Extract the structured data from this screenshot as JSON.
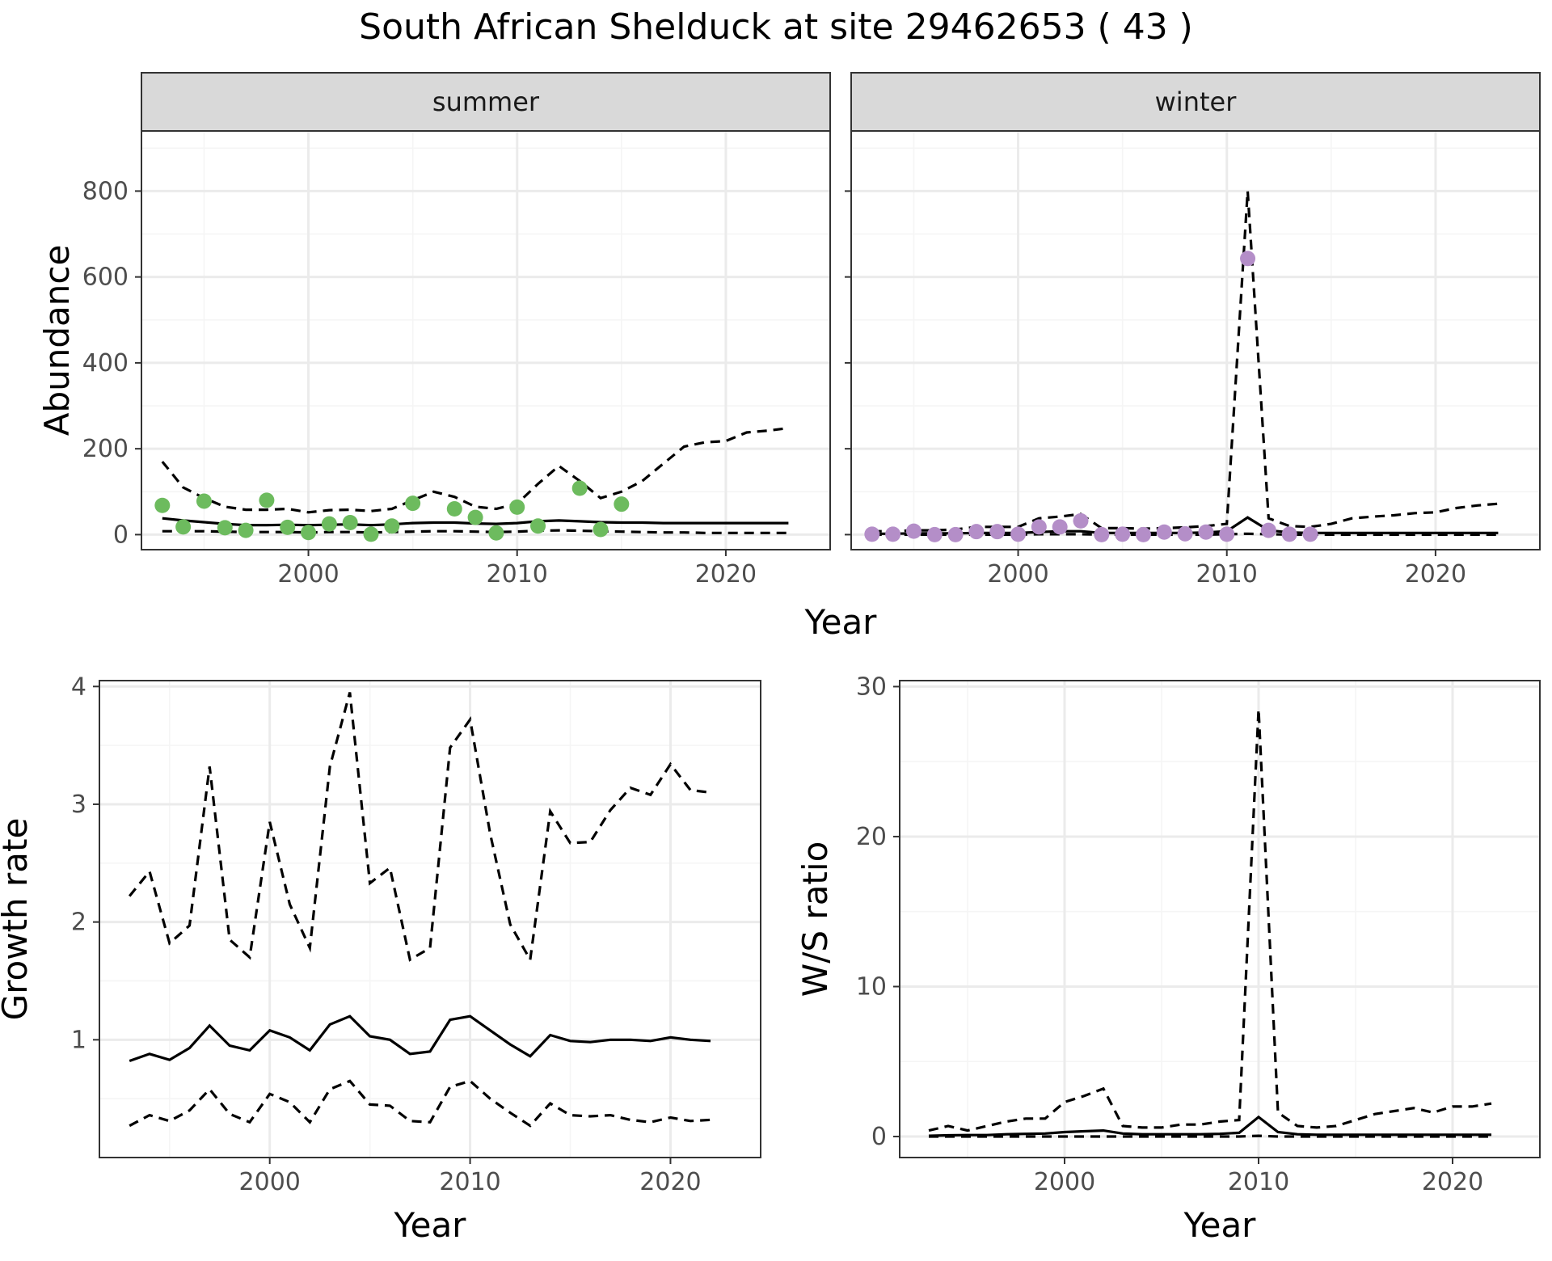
{
  "title": "South African Shelduck at site 29462653 ( 43 )",
  "chart_data": [
    {
      "type": "line",
      "panel": "summer",
      "strip_label": "summer",
      "xlabel": "Year",
      "ylabel": "Abundance",
      "xlim": [
        1992,
        2025
      ],
      "ylim": [
        -35,
        940
      ],
      "xticks": [
        2000,
        2010,
        2020
      ],
      "yticks": [
        0,
        200,
        400,
        600,
        800
      ],
      "grid": true,
      "point_color": "#6dbb5e",
      "points": {
        "x": [
          1993,
          1994,
          1995,
          1996,
          1997,
          1998,
          1999,
          2000,
          2001,
          2002,
          2003,
          2004,
          2005,
          2007,
          2008,
          2009,
          2010,
          2011,
          2013,
          2014,
          2015
        ],
        "y": [
          68,
          18,
          78,
          16,
          10,
          80,
          17,
          5,
          25,
          28,
          1,
          20,
          73,
          60,
          40,
          4,
          64,
          20,
          108,
          12,
          71
        ]
      },
      "series": [
        {
          "name": "",
          "style": "solid",
          "x": [
            1993,
            1994,
            1995,
            1996,
            1997,
            1998,
            1999,
            2000,
            2001,
            2002,
            2003,
            2004,
            2005,
            2006,
            2007,
            2008,
            2009,
            2010,
            2011,
            2012,
            2013,
            2014,
            2015,
            2016,
            2017,
            2018,
            2019,
            2020,
            2021,
            2022,
            2023
          ],
          "y": [
            38,
            33,
            29,
            25,
            22,
            22,
            23,
            22,
            23,
            24,
            22,
            24,
            27,
            28,
            28,
            26,
            25,
            27,
            31,
            33,
            31,
            29,
            28,
            28,
            27,
            27,
            27,
            27,
            27,
            27,
            27
          ]
        },
        {
          "name": "",
          "style": "dashed",
          "x": [
            1993,
            1994,
            1995,
            1996,
            1997,
            1998,
            1999,
            2000,
            2001,
            2002,
            2003,
            2004,
            2005,
            2006,
            2007,
            2008,
            2009,
            2010,
            2011,
            2012,
            2013,
            2014,
            2015,
            2016,
            2017,
            2018,
            2019,
            2020,
            2021,
            2022,
            2023
          ],
          "y": [
            170,
            110,
            85,
            65,
            58,
            58,
            60,
            52,
            57,
            58,
            55,
            60,
            80,
            100,
            88,
            65,
            60,
            72,
            118,
            160,
            125,
            85,
            100,
            125,
            165,
            205,
            215,
            218,
            238,
            242,
            248
          ]
        },
        {
          "name": "",
          "style": "dashed",
          "x": [
            1993,
            1994,
            1995,
            1996,
            1997,
            1998,
            1999,
            2000,
            2001,
            2002,
            2003,
            2004,
            2005,
            2006,
            2007,
            2008,
            2009,
            2010,
            2011,
            2012,
            2013,
            2014,
            2015,
            2016,
            2017,
            2018,
            2019,
            2020,
            2021,
            2022,
            2023
          ],
          "y": [
            8,
            8,
            8,
            7,
            6,
            6,
            6,
            5,
            6,
            6,
            5,
            6,
            7,
            8,
            8,
            7,
            6,
            7,
            9,
            10,
            9,
            8,
            7,
            6,
            5,
            5,
            4,
            4,
            4,
            4,
            4
          ]
        }
      ]
    },
    {
      "type": "line",
      "panel": "winter",
      "strip_label": "winter",
      "xlabel": "Year",
      "ylabel": "Abundance",
      "xlim": [
        1992,
        2025
      ],
      "ylim": [
        -35,
        940
      ],
      "xticks": [
        2000,
        2010,
        2020
      ],
      "yticks": [
        0,
        200,
        400,
        600,
        800
      ],
      "grid": true,
      "point_color": "#b48ec8",
      "points": {
        "x": [
          1993,
          1994,
          1995,
          1996,
          1997,
          1998,
          1999,
          2000,
          2001,
          2002,
          2003,
          2004,
          2005,
          2006,
          2007,
          2008,
          2009,
          2010,
          2011,
          2012,
          2013,
          2014
        ],
        "y": [
          1,
          1,
          8,
          0,
          0,
          7,
          7,
          1,
          18,
          18,
          32,
          0,
          1,
          0,
          6,
          2,
          6,
          1,
          643,
          10,
          1,
          1
        ]
      },
      "series": [
        {
          "name": "",
          "style": "solid",
          "x": [
            1993,
            1994,
            1995,
            1996,
            1997,
            1998,
            1999,
            2000,
            2001,
            2002,
            2003,
            2004,
            2005,
            2006,
            2007,
            2008,
            2009,
            2010,
            2011,
            2012,
            2013,
            2014,
            2015,
            2016,
            2017,
            2018,
            2019,
            2020,
            2021,
            2022,
            2023
          ],
          "y": [
            2,
            2,
            3,
            3,
            3,
            4,
            4,
            4,
            6,
            8,
            8,
            4,
            4,
            4,
            4,
            4,
            5,
            8,
            40,
            10,
            5,
            4,
            4,
            4,
            4,
            4,
            4,
            4,
            4,
            4,
            4
          ]
        },
        {
          "name": "",
          "style": "dashed",
          "x": [
            1993,
            1994,
            1995,
            1996,
            1997,
            1998,
            1999,
            2000,
            2001,
            2002,
            2003,
            2004,
            2005,
            2006,
            2007,
            2008,
            2009,
            2010,
            2011,
            2012,
            2013,
            2014,
            2015,
            2016,
            2017,
            2018,
            2019,
            2020,
            2021,
            2022,
            2023
          ],
          "y": [
            8,
            8,
            10,
            10,
            12,
            18,
            18,
            18,
            38,
            42,
            48,
            15,
            15,
            14,
            15,
            17,
            20,
            25,
            800,
            38,
            20,
            18,
            25,
            38,
            42,
            45,
            50,
            52,
            62,
            68,
            72
          ]
        },
        {
          "name": "",
          "style": "dashed",
          "x": [
            1993,
            1994,
            1995,
            1996,
            1997,
            1998,
            1999,
            2000,
            2001,
            2002,
            2003,
            2004,
            2005,
            2006,
            2007,
            2008,
            2009,
            2010,
            2011,
            2012,
            2013,
            2014,
            2015,
            2016,
            2017,
            2018,
            2019,
            2020,
            2021,
            2022,
            2023
          ],
          "y": [
            0,
            0,
            0,
            0,
            0,
            0,
            0,
            0,
            1,
            1,
            1,
            0,
            0,
            0,
            0,
            0,
            0,
            1,
            2,
            1,
            0,
            0,
            0,
            0,
            0,
            0,
            0,
            0,
            0,
            0,
            0
          ]
        }
      ]
    },
    {
      "type": "line",
      "panel": "growth",
      "xlabel": "Year",
      "ylabel": "Growth rate",
      "xlim": [
        1991.5,
        2024.5
      ],
      "ylim": [
        0.0,
        4.05
      ],
      "xticks": [
        2000,
        2010,
        2020
      ],
      "yticks": [
        1,
        2,
        3,
        4
      ],
      "grid": true,
      "series": [
        {
          "name": "",
          "style": "solid",
          "x": [
            1993,
            1994,
            1995,
            1996,
            1997,
            1998,
            1999,
            2000,
            2001,
            2002,
            2003,
            2004,
            2005,
            2006,
            2007,
            2008,
            2009,
            2010,
            2011,
            2012,
            2013,
            2014,
            2015,
            2016,
            2017,
            2018,
            2019,
            2020,
            2021,
            2022
          ],
          "y": [
            0.82,
            0.88,
            0.83,
            0.93,
            1.12,
            0.95,
            0.91,
            1.08,
            1.02,
            0.91,
            1.13,
            1.2,
            1.03,
            1.0,
            0.88,
            0.9,
            1.17,
            1.2,
            1.08,
            0.96,
            0.86,
            1.04,
            0.99,
            0.98,
            1.0,
            1.0,
            0.99,
            1.02,
            1.0,
            0.99
          ]
        },
        {
          "name": "",
          "style": "dashed",
          "x": [
            1993,
            1994,
            1995,
            1996,
            1997,
            1998,
            1999,
            2000,
            2001,
            2002,
            2003,
            2004,
            2005,
            2006,
            2007,
            2008,
            2009,
            2010,
            2011,
            2012,
            2013,
            2014,
            2015,
            2016,
            2017,
            2018,
            2019,
            2020,
            2021,
            2022
          ],
          "y": [
            2.22,
            2.43,
            1.82,
            1.97,
            3.32,
            1.85,
            1.7,
            2.85,
            2.15,
            1.78,
            3.32,
            3.95,
            2.33,
            2.46,
            1.68,
            1.78,
            3.48,
            3.72,
            2.75,
            1.98,
            1.68,
            2.94,
            2.67,
            2.68,
            2.95,
            3.14,
            3.08,
            3.34,
            3.12,
            3.1
          ]
        },
        {
          "name": "",
          "style": "dashed",
          "x": [
            1993,
            1994,
            1995,
            1996,
            1997,
            1998,
            1999,
            2000,
            2001,
            2002,
            2003,
            2004,
            2005,
            2006,
            2007,
            2008,
            2009,
            2010,
            2011,
            2012,
            2013,
            2014,
            2015,
            2016,
            2017,
            2018,
            2019,
            2020,
            2021,
            2022
          ],
          "y": [
            0.27,
            0.36,
            0.31,
            0.4,
            0.58,
            0.37,
            0.3,
            0.54,
            0.47,
            0.3,
            0.58,
            0.65,
            0.45,
            0.44,
            0.31,
            0.3,
            0.6,
            0.65,
            0.5,
            0.38,
            0.27,
            0.46,
            0.36,
            0.35,
            0.36,
            0.32,
            0.3,
            0.34,
            0.31,
            0.32
          ]
        }
      ]
    },
    {
      "type": "line",
      "panel": "ratio",
      "xlabel": "Year",
      "ylabel": "W/S ratio",
      "xlim": [
        1991.5,
        2024.5
      ],
      "ylim": [
        -1.4,
        30.4
      ],
      "xticks": [
        2000,
        2010,
        2020
      ],
      "yticks": [
        0,
        10,
        20,
        30
      ],
      "grid": true,
      "series": [
        {
          "name": "",
          "style": "solid",
          "x": [
            1993,
            1994,
            1995,
            1996,
            1997,
            1998,
            1999,
            2000,
            2001,
            2002,
            2003,
            2004,
            2005,
            2006,
            2007,
            2008,
            2009,
            2010,
            2011,
            2012,
            2013,
            2014,
            2015,
            2016,
            2017,
            2018,
            2019,
            2020,
            2021,
            2022
          ],
          "y": [
            0.05,
            0.08,
            0.1,
            0.1,
            0.15,
            0.18,
            0.2,
            0.3,
            0.35,
            0.4,
            0.2,
            0.15,
            0.15,
            0.15,
            0.15,
            0.18,
            0.25,
            1.3,
            0.3,
            0.15,
            0.12,
            0.12,
            0.12,
            0.12,
            0.12,
            0.12,
            0.12,
            0.12,
            0.12,
            0.12
          ]
        },
        {
          "name": "",
          "style": "dashed",
          "x": [
            1993,
            1994,
            1995,
            1996,
            1997,
            1998,
            1999,
            2000,
            2001,
            2002,
            2003,
            2004,
            2005,
            2006,
            2007,
            2008,
            2009,
            2010,
            2011,
            2012,
            2013,
            2014,
            2015,
            2016,
            2017,
            2018,
            2019,
            2020,
            2021,
            2022
          ],
          "y": [
            0.4,
            0.7,
            0.4,
            0.7,
            1.0,
            1.2,
            1.2,
            2.3,
            2.7,
            3.2,
            0.7,
            0.6,
            0.6,
            0.8,
            0.8,
            1.0,
            1.1,
            28.5,
            1.6,
            0.7,
            0.6,
            0.7,
            1.1,
            1.5,
            1.7,
            1.9,
            1.6,
            2.0,
            2.0,
            2.2
          ]
        },
        {
          "name": "",
          "style": "dashed",
          "x": [
            1993,
            1994,
            1995,
            1996,
            1997,
            1998,
            1999,
            2000,
            2001,
            2002,
            2003,
            2004,
            2005,
            2006,
            2007,
            2008,
            2009,
            2010,
            2011,
            2012,
            2013,
            2014,
            2015,
            2016,
            2017,
            2018,
            2019,
            2020,
            2021,
            2022
          ],
          "y": [
            0.0,
            0.0,
            0.0,
            0.0,
            0.0,
            0.0,
            0.0,
            0.0,
            0.0,
            0.0,
            0.0,
            0.0,
            0.0,
            0.0,
            0.0,
            0.0,
            0.0,
            0.05,
            0.0,
            0.0,
            0.0,
            0.0,
            0.0,
            0.0,
            0.0,
            0.0,
            0.0,
            0.0,
            0.0,
            0.0
          ]
        }
      ]
    }
  ]
}
